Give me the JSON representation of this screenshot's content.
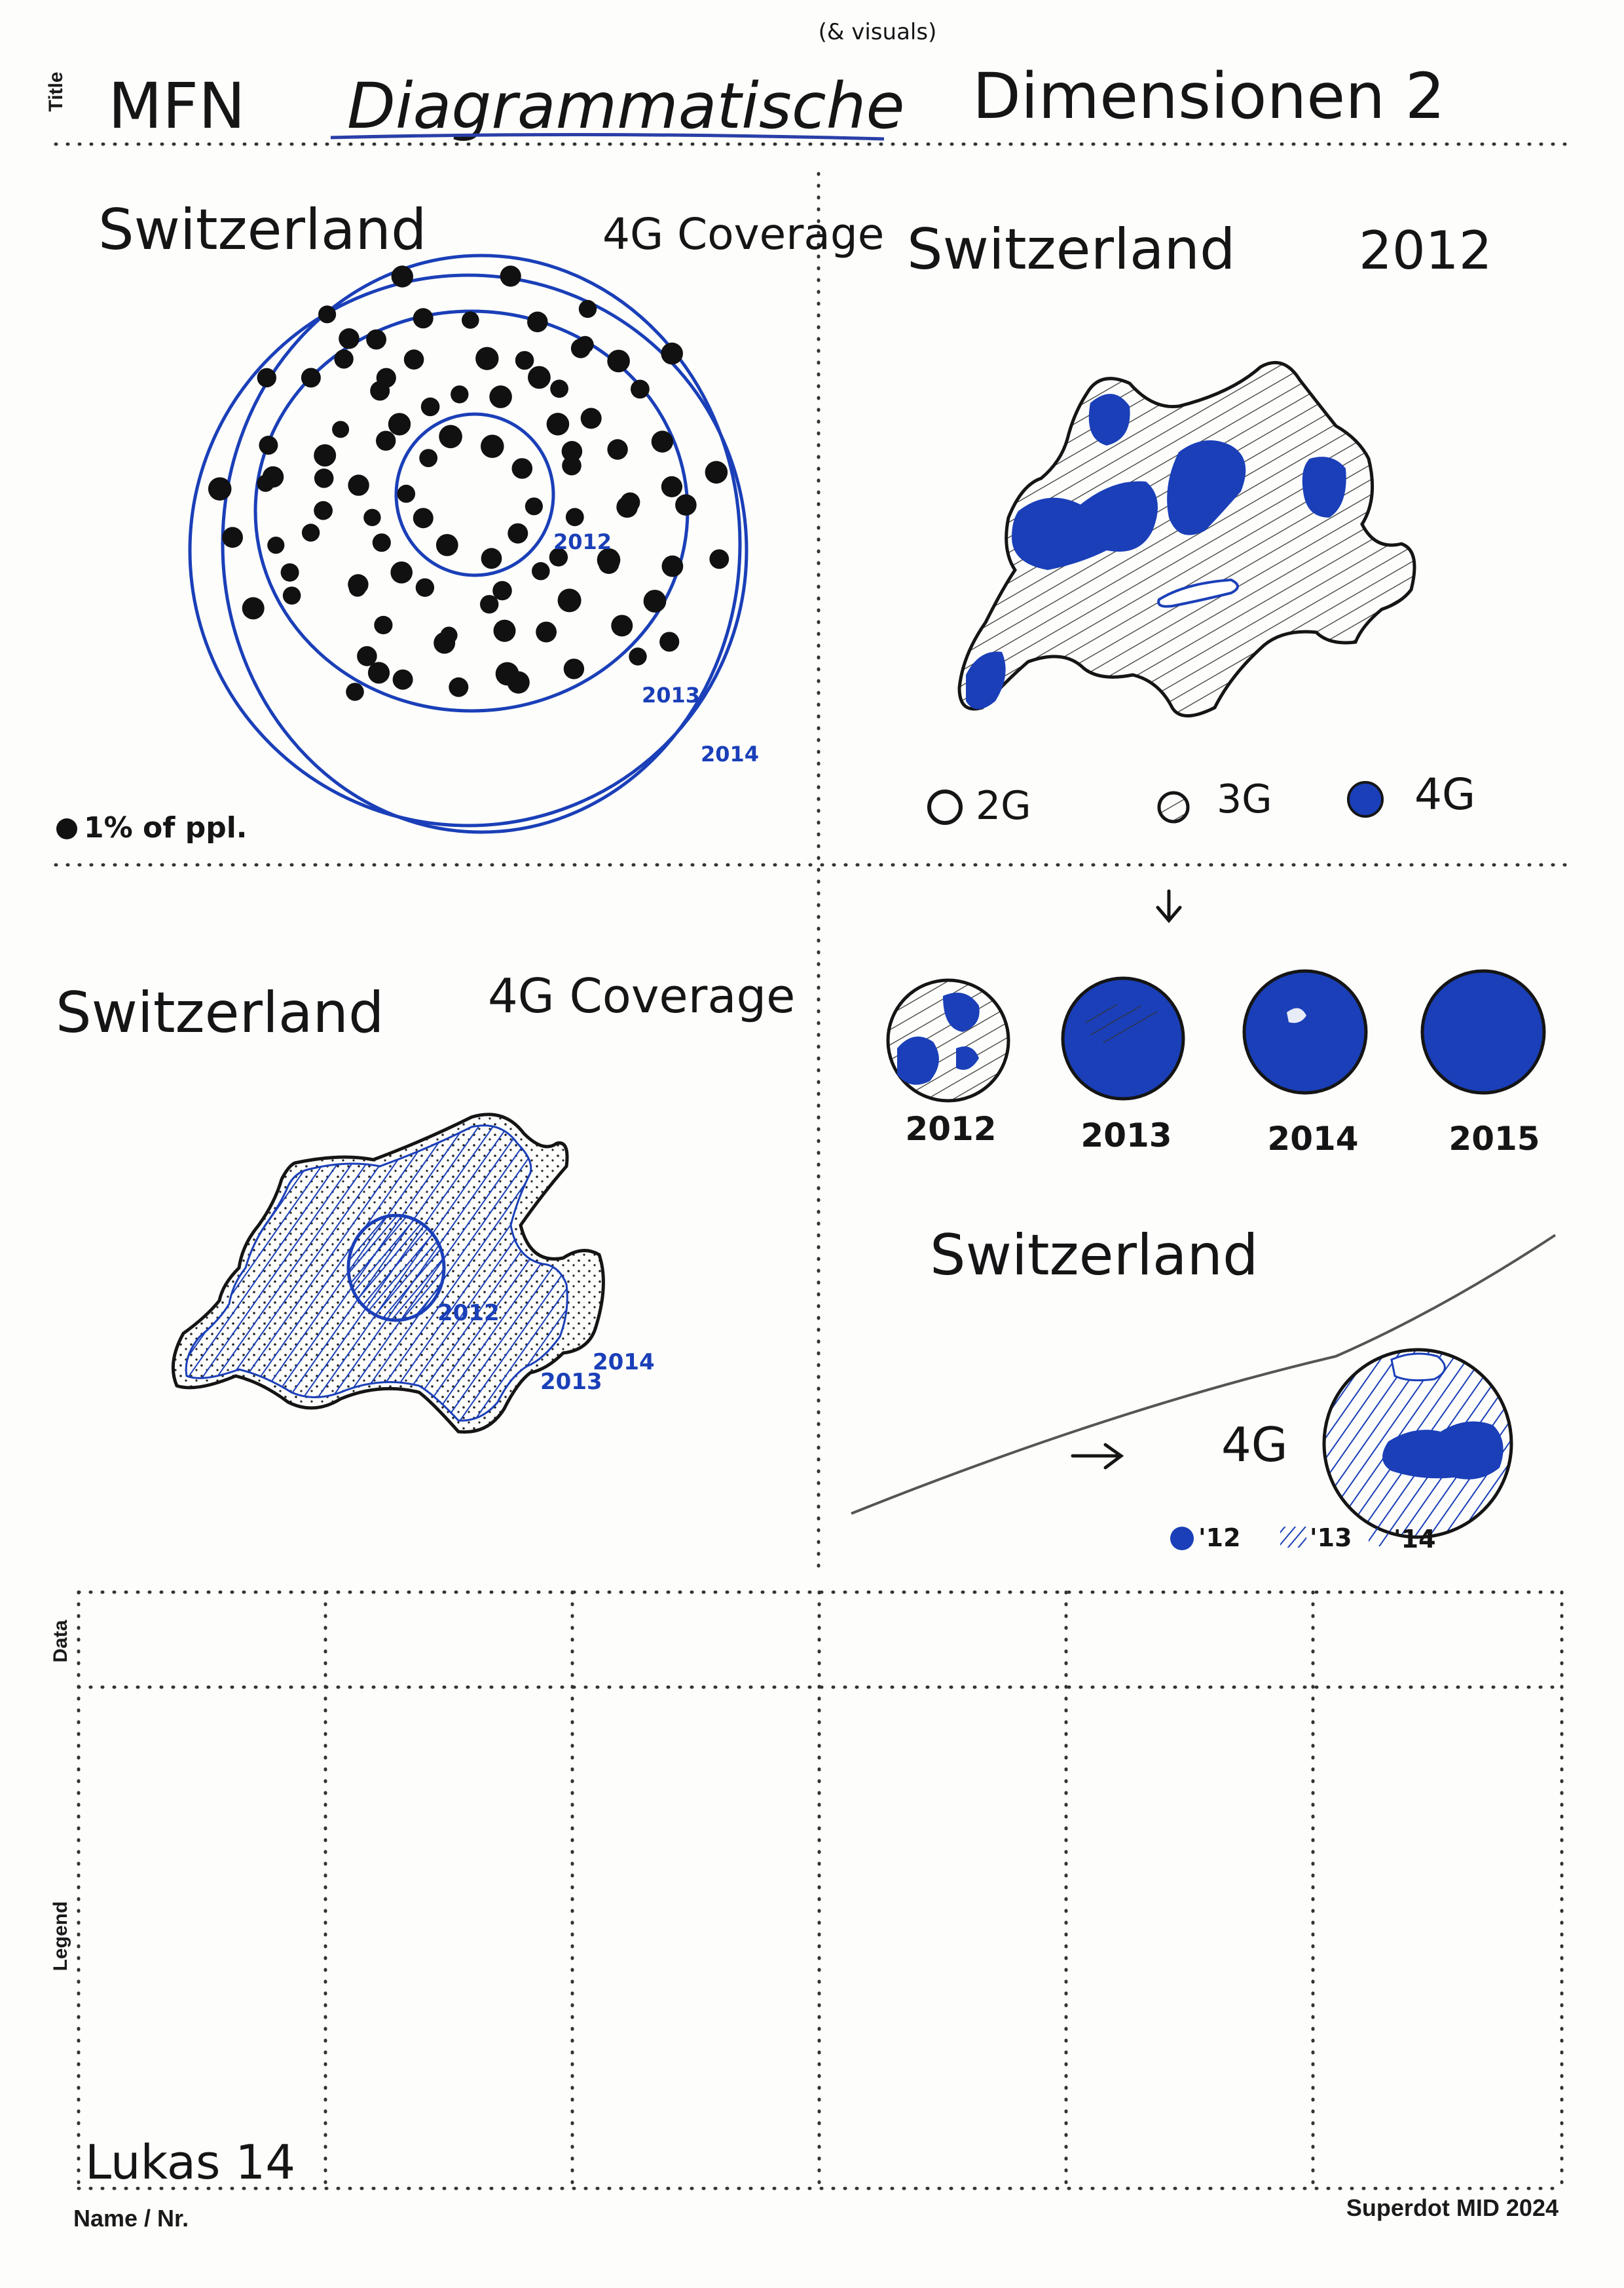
{
  "colors": {
    "ink": "#151515",
    "pen_blue": "#1a3fb8",
    "grid_dots": "#333333",
    "paper": "#fdfdfb"
  },
  "sheet": {
    "side_label_title": "Title",
    "side_label_data": "Data",
    "side_label_legend": "Legend",
    "name_label": "Name / Nr.",
    "brand": "Superdot MID 2024"
  },
  "title": {
    "prefix": "MFN",
    "main": "Diagrammatische",
    "suffix": "Dimensionen 2",
    "note": "(& visuals)"
  },
  "sketch_1": {
    "title": "Switzerland",
    "subtitle": "4G Coverage",
    "ring_labels": [
      "2012",
      "2013",
      "2014"
    ],
    "legend": "1% of ppl."
  },
  "sketch_2": {
    "title": "Switzerland",
    "year": "2012",
    "legend": [
      {
        "label": "2G",
        "style": "empty"
      },
      {
        "label": "3G",
        "style": "hatched"
      },
      {
        "label": "4G",
        "style": "filled"
      }
    ]
  },
  "sketch_3": {
    "title": "Switzerland",
    "subtitle": "4G Coverage",
    "labels": [
      "2012",
      "2014",
      "2013"
    ]
  },
  "sketch_4": {
    "years": [
      "2012",
      "2013",
      "2014",
      "2015"
    ]
  },
  "sketch_5": {
    "title": "Switzerland",
    "arrow_label": "4G",
    "legend": [
      "'12",
      "'13",
      "'14"
    ]
  },
  "author": {
    "name": "Lukas 14"
  }
}
